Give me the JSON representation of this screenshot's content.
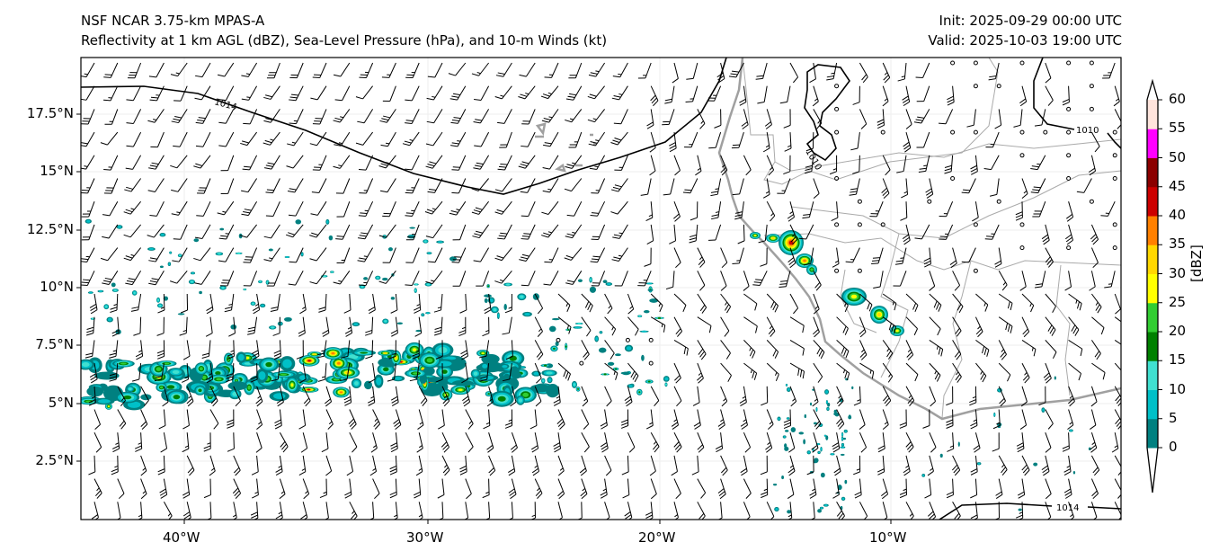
{
  "header": {
    "title_line1": "NSF NCAR 3.75-km MPAS-A",
    "title_line2": "Reflectivity at 1 km AGL (dBZ), Sea-Level Pressure (hPa), and 10-m Winds (kt)",
    "init": "Init: 2025-09-29 00:00 UTC",
    "valid": "Valid: 2025-10-03 19:00 UTC"
  },
  "map": {
    "lat_ticks": [
      "17.5°N",
      "15°N",
      "12.5°N",
      "10°N",
      "7.5°N",
      "5°N",
      "2.5°N"
    ],
    "lon_ticks": [
      "40°W",
      "30°W",
      "20°W",
      "10°W"
    ],
    "contour_labels": [
      "1014",
      "1010",
      "1010",
      "1014"
    ]
  },
  "colorbar": {
    "label": "[dBZ]",
    "ticks": [
      "0",
      "5",
      "10",
      "15",
      "20",
      "25",
      "30",
      "35",
      "40",
      "45",
      "50",
      "55",
      "60"
    ],
    "colors": [
      "#008080",
      "#00c0c8",
      "#40e0d0",
      "#008000",
      "#32cd32",
      "#ffff00",
      "#ffd700",
      "#ff8000",
      "#cc0000",
      "#8b0000",
      "#ff00ff",
      "#ffe4dc"
    ]
  }
}
